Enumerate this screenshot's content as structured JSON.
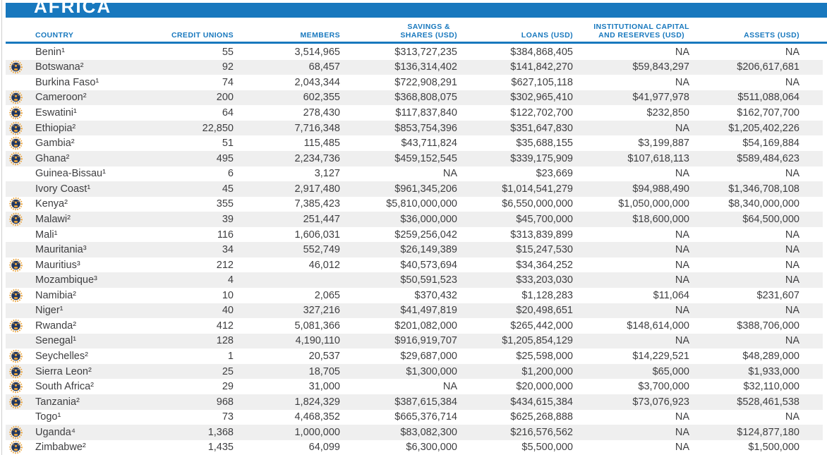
{
  "page": {
    "title": "AFRICA"
  },
  "colors": {
    "accent_blue": "#1878be",
    "stripe_gray": "#efefef",
    "text_gray": "#3e3e40",
    "icon_navy": "#21375f",
    "icon_gold": "#e9a33c"
  },
  "table": {
    "columns": [
      {
        "key": "country",
        "label": "COUNTRY"
      },
      {
        "key": "credit_unions",
        "label": "CREDIT UNIONS"
      },
      {
        "key": "members",
        "label": "MEMBERS"
      },
      {
        "key": "savings",
        "label": "SAVINGS &\nSHARES (USD)"
      },
      {
        "key": "loans",
        "label": "LOANS (USD)"
      },
      {
        "key": "capital",
        "label": "INSTITUTIONAL CAPITAL\nAND RESERVES (USD)"
      },
      {
        "key": "assets",
        "label": "ASSETS (USD)"
      }
    ],
    "member_icon_name": "woccu-member-icon",
    "rows": [
      {
        "icon": false,
        "country": "Benin¹",
        "credit_unions": "55",
        "members": "3,514,965",
        "savings": "$313,727,235",
        "loans": "$384,868,405",
        "capital": "NA",
        "assets": "NA"
      },
      {
        "icon": true,
        "country": "Botswana²",
        "credit_unions": "92",
        "members": "68,457",
        "savings": "$136,314,402",
        "loans": "$141,842,270",
        "capital": "$59,843,297",
        "assets": "$206,617,681"
      },
      {
        "icon": false,
        "country": "Burkina Faso¹",
        "credit_unions": "74",
        "members": "2,043,344",
        "savings": "$722,908,291",
        "loans": "$627,105,118",
        "capital": "NA",
        "assets": "NA"
      },
      {
        "icon": true,
        "country": "Cameroon²",
        "credit_unions": "200",
        "members": "602,355",
        "savings": "$368,808,075",
        "loans": "$302,965,410",
        "capital": "$41,977,978",
        "assets": "$511,088,064"
      },
      {
        "icon": true,
        "country": "Eswatini¹",
        "credit_unions": "64",
        "members": "278,430",
        "savings": "$117,837,840",
        "loans": "$122,702,700",
        "capital": "$232,850",
        "assets": "$162,707,700"
      },
      {
        "icon": true,
        "country": "Ethiopia²",
        "credit_unions": "22,850",
        "members": "7,716,348",
        "savings": "$853,754,396",
        "loans": "$351,647,830",
        "capital": "NA",
        "assets": "$1,205,402,226"
      },
      {
        "icon": true,
        "country": "Gambia²",
        "credit_unions": "51",
        "members": "115,485",
        "savings": "$43,711,824",
        "loans": "$35,688,155",
        "capital": "$3,199,887",
        "assets": "$54,169,884"
      },
      {
        "icon": true,
        "country": "Ghana²",
        "credit_unions": "495",
        "members": "2,234,736",
        "savings": "$459,152,545",
        "loans": "$339,175,909",
        "capital": "$107,618,113",
        "assets": "$589,484,623"
      },
      {
        "icon": false,
        "country": "Guinea-Bissau¹",
        "credit_unions": "6",
        "members": "3,127",
        "savings": "NA",
        "loans": "$23,669",
        "capital": "NA",
        "assets": "NA"
      },
      {
        "icon": false,
        "country": "Ivory Coast¹",
        "credit_unions": "45",
        "members": "2,917,480",
        "savings": "$961,345,206",
        "loans": "$1,014,541,279",
        "capital": "$94,988,490",
        "assets": "$1,346,708,108"
      },
      {
        "icon": true,
        "country": "Kenya²",
        "credit_unions": "355",
        "members": "7,385,423",
        "savings": "$5,810,000,000",
        "loans": "$6,550,000,000",
        "capital": "$1,050,000,000",
        "assets": "$8,340,000,000"
      },
      {
        "icon": true,
        "country": "Malawi²",
        "credit_unions": "39",
        "members": "251,447",
        "savings": "$36,000,000",
        "loans": "$45,700,000",
        "capital": "$18,600,000",
        "assets": "$64,500,000"
      },
      {
        "icon": false,
        "country": "Mali¹",
        "credit_unions": "116",
        "members": "1,606,031",
        "savings": "$259,256,042",
        "loans": "$313,839,899",
        "capital": "NA",
        "assets": "NA"
      },
      {
        "icon": false,
        "country": "Mauritania³",
        "credit_unions": "34",
        "members": "552,749",
        "savings": "$26,149,389",
        "loans": "$15,247,530",
        "capital": "NA",
        "assets": "NA"
      },
      {
        "icon": true,
        "country": "Mauritius³",
        "credit_unions": "212",
        "members": "46,012",
        "savings": "$40,573,694",
        "loans": "$34,364,252",
        "capital": "NA",
        "assets": "NA"
      },
      {
        "icon": false,
        "country": "Mozambique³",
        "credit_unions": "4",
        "members": "",
        "savings": "$50,591,523",
        "loans": "$33,203,030",
        "capital": "NA",
        "assets": "NA"
      },
      {
        "icon": true,
        "country": "Namibia²",
        "credit_unions": "10",
        "members": "2,065",
        "savings": "$370,432",
        "loans": "$1,128,283",
        "capital": "$11,064",
        "assets": "$231,607"
      },
      {
        "icon": false,
        "country": "Niger¹",
        "credit_unions": "40",
        "members": "327,216",
        "savings": "$41,497,819",
        "loans": "$20,498,651",
        "capital": "NA",
        "assets": "NA"
      },
      {
        "icon": true,
        "country": "Rwanda²",
        "credit_unions": "412",
        "members": "5,081,366",
        "savings": "$201,082,000",
        "loans": "$265,442,000",
        "capital": "$148,614,000",
        "assets": "$388,706,000"
      },
      {
        "icon": false,
        "country": "Senegal¹",
        "credit_unions": "128",
        "members": "4,190,110",
        "savings": "$916,919,707",
        "loans": "$1,205,854,129",
        "capital": "NA",
        "assets": "NA"
      },
      {
        "icon": true,
        "country": "Seychelles²",
        "credit_unions": "1",
        "members": "20,537",
        "savings": "$29,687,000",
        "loans": "$25,598,000",
        "capital": "$14,229,521",
        "assets": "$48,289,000"
      },
      {
        "icon": true,
        "country": "Sierra Leon²",
        "credit_unions": "25",
        "members": "18,705",
        "savings": "$1,300,000",
        "loans": "$1,200,000",
        "capital": "$65,000",
        "assets": "$1,933,000"
      },
      {
        "icon": true,
        "country": "South Africa²",
        "credit_unions": "29",
        "members": "31,000",
        "savings": "NA",
        "loans": "$20,000,000",
        "capital": "$3,700,000",
        "assets": "$32,110,000"
      },
      {
        "icon": true,
        "country": "Tanzania²",
        "credit_unions": "968",
        "members": "1,824,329",
        "savings": "$387,615,384",
        "loans": "$434,615,384",
        "capital": "$73,076,923",
        "assets": "$528,461,538"
      },
      {
        "icon": false,
        "country": "Togo¹",
        "credit_unions": "73",
        "members": "4,468,352",
        "savings": "$665,376,714",
        "loans": "$625,268,888",
        "capital": "NA",
        "assets": "NA"
      },
      {
        "icon": true,
        "country": "Uganda⁴",
        "credit_unions": "1,368",
        "members": "1,000,000",
        "savings": "$83,082,300",
        "loans": "$216,576,562",
        "capital": "NA",
        "assets": "$124,877,180"
      },
      {
        "icon": true,
        "country": "Zimbabwe²",
        "credit_unions": "1,435",
        "members": "64,099",
        "savings": "$6,300,000",
        "loans": "$5,500,000",
        "capital": "NA",
        "assets": "$1,500,000"
      }
    ]
  }
}
